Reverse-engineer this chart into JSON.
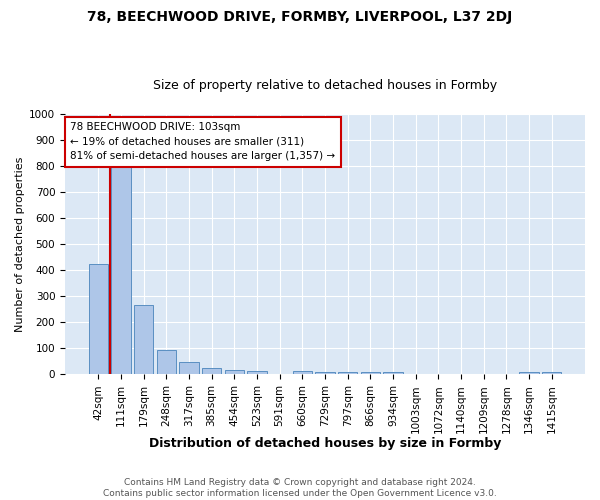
{
  "title_line1": "78, BEECHWOOD DRIVE, FORMBY, LIVERPOOL, L37 2DJ",
  "title_line2": "Size of property relative to detached houses in Formby",
  "xlabel": "Distribution of detached houses by size in Formby",
  "ylabel": "Number of detached properties",
  "categories": [
    "42sqm",
    "111sqm",
    "179sqm",
    "248sqm",
    "317sqm",
    "385sqm",
    "454sqm",
    "523sqm",
    "591sqm",
    "660sqm",
    "729sqm",
    "797sqm",
    "866sqm",
    "934sqm",
    "1003sqm",
    "1072sqm",
    "1140sqm",
    "1209sqm",
    "1278sqm",
    "1346sqm",
    "1415sqm"
  ],
  "values": [
    425,
    820,
    265,
    92,
    48,
    25,
    17,
    12,
    0,
    12,
    10,
    10,
    10,
    10,
    0,
    0,
    0,
    0,
    0,
    10,
    10
  ],
  "bar_color": "#aec6e8",
  "bar_edge_color": "#5a8fc2",
  "vline_x": 0.5,
  "vline_color": "#cc0000",
  "annotation_text": "78 BEECHWOOD DRIVE: 103sqm\n← 19% of detached houses are smaller (311)\n81% of semi-detached houses are larger (1,357) →",
  "annotation_box_color": "#ffffff",
  "annotation_box_edge": "#cc0000",
  "ylim": [
    0,
    1000
  ],
  "yticks": [
    0,
    100,
    200,
    300,
    400,
    500,
    600,
    700,
    800,
    900,
    1000
  ],
  "fig_background_color": "#ffffff",
  "plot_bg_color": "#dce8f5",
  "footer_text": "Contains HM Land Registry data © Crown copyright and database right 2024.\nContains public sector information licensed under the Open Government Licence v3.0.",
  "title1_fontsize": 10,
  "title2_fontsize": 9,
  "xlabel_fontsize": 9,
  "ylabel_fontsize": 8,
  "tick_fontsize": 7.5,
  "annotation_fontsize": 7.5,
  "footer_fontsize": 6.5
}
